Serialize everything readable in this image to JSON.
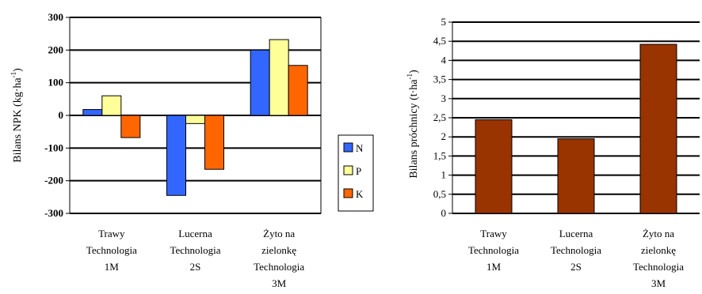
{
  "chart_data": [
    {
      "type": "bar",
      "categories": [
        [
          "Trawy",
          "Technologia",
          "1M"
        ],
        [
          "Lucerna",
          "Technologia",
          "2S"
        ],
        [
          "Żyto na",
          "zielonkę",
          "Technologia",
          "3M"
        ]
      ],
      "series": [
        {
          "name": "N",
          "color": "#3366FF",
          "values": [
            18,
            -245,
            200
          ]
        },
        {
          "name": "P",
          "color": "#FFFF99",
          "values": [
            60,
            -25,
            232
          ]
        },
        {
          "name": "K",
          "color": "#FF6600",
          "values": [
            -68,
            -165,
            153
          ]
        }
      ],
      "ylabel": "Bilans NPK (kg·ha",
      "ylabel_sup": "-1",
      "ylabel_tail": ")",
      "ylim": [
        -300,
        300
      ],
      "yticks": [
        "300",
        "200",
        "100",
        "0",
        "-100",
        "-200",
        "-300"
      ],
      "legend_position": "right",
      "grid": true
    },
    {
      "type": "bar",
      "categories": [
        [
          "Trawy",
          "Technologia",
          "1M"
        ],
        [
          "Lucerna",
          "Technologia",
          "2S"
        ],
        [
          "Żyto na",
          "zielonkę",
          "Technologia",
          "3M"
        ]
      ],
      "series": [
        {
          "name": "",
          "color": "#993300",
          "values": [
            2.45,
            1.95,
            4.42
          ]
        }
      ],
      "ylabel": "Bilans próchnicy  (t·ha",
      "ylabel_sup": "-1",
      "ylabel_tail": ")",
      "ylim": [
        0,
        5
      ],
      "yticks": [
        "5",
        "4,5",
        "4",
        "3,5",
        "3",
        "2,5",
        "2",
        "1,5",
        "1",
        "0,5",
        "0"
      ],
      "grid": true
    }
  ]
}
